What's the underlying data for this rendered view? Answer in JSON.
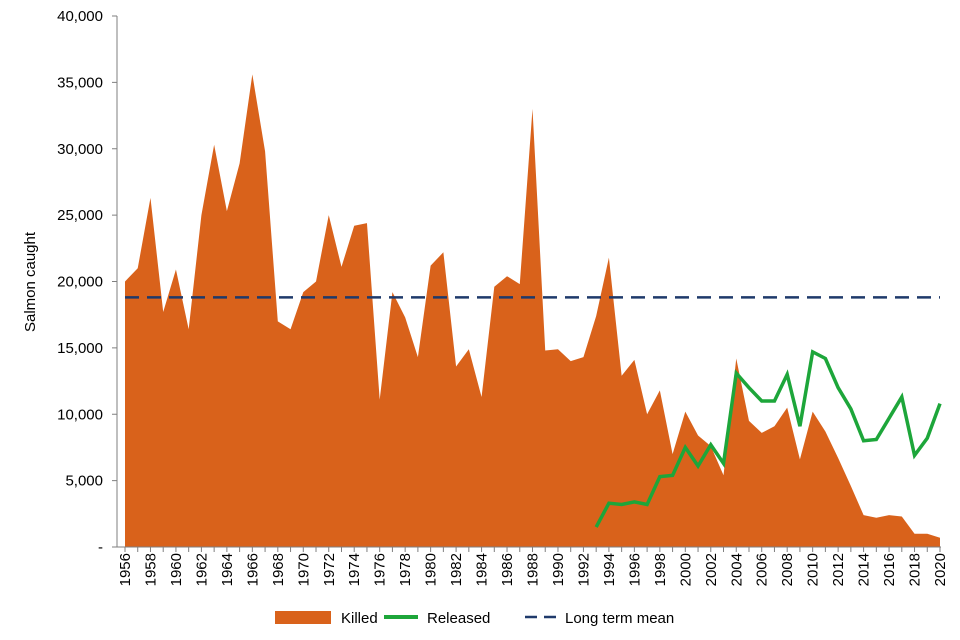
{
  "chart_data": {
    "type": "area",
    "title": "",
    "xlabel": "",
    "ylabel": "Salmon  caught",
    "ylim": [
      0,
      40000
    ],
    "y_ticks": [
      0,
      5000,
      10000,
      15000,
      20000,
      25000,
      30000,
      35000,
      40000
    ],
    "y_tick_labels": [
      "-",
      "5,000",
      "10,000",
      "15,000",
      "20,000",
      "25,000",
      "30,000",
      "35,000",
      "40,000"
    ],
    "x_ticks": [
      1956,
      1958,
      1960,
      1962,
      1964,
      1966,
      1968,
      1970,
      1972,
      1974,
      1976,
      1978,
      1980,
      1982,
      1984,
      1986,
      1988,
      1990,
      1992,
      1994,
      1996,
      1998,
      2000,
      2002,
      2004,
      2006,
      2008,
      2010,
      2012,
      2014,
      2016,
      2018,
      2020
    ],
    "legend_position": "bottom",
    "years": [
      1956,
      1957,
      1958,
      1959,
      1960,
      1961,
      1962,
      1963,
      1964,
      1965,
      1966,
      1967,
      1968,
      1969,
      1970,
      1971,
      1972,
      1973,
      1974,
      1975,
      1976,
      1977,
      1978,
      1979,
      1980,
      1981,
      1982,
      1983,
      1984,
      1985,
      1986,
      1987,
      1988,
      1989,
      1990,
      1991,
      1992,
      1993,
      1994,
      1995,
      1996,
      1997,
      1998,
      1999,
      2000,
      2001,
      2002,
      2003,
      2004,
      2005,
      2006,
      2007,
      2008,
      2009,
      2010,
      2011,
      2012,
      2013,
      2014,
      2015,
      2016,
      2017,
      2018,
      2019,
      2020
    ],
    "series": [
      {
        "name": "Killed",
        "kind": "area",
        "color": "#D9621B",
        "values": [
          20000,
          21000,
          26300,
          17700,
          20900,
          16400,
          25000,
          30300,
          25300,
          28900,
          35600,
          29800,
          17000,
          16400,
          19200,
          20000,
          25000,
          21100,
          24200,
          24400,
          11100,
          19200,
          17300,
          14300,
          21200,
          22200,
          13600,
          14900,
          11300,
          19600,
          20400,
          19800,
          33000,
          14800,
          14900,
          14000,
          14300,
          17400,
          21800,
          12900,
          14100,
          10000,
          11800,
          7000,
          10200,
          8400,
          7600,
          5400,
          14200,
          9500,
          8600,
          9100,
          10500,
          6600,
          10200,
          8700,
          6700,
          4600,
          2400,
          2200,
          2400,
          2300,
          1000,
          1000,
          700
        ]
      },
      {
        "name": "Released",
        "kind": "line",
        "color": "#1DA63A",
        "start_year": 1993,
        "values": [
          1500,
          3300,
          3200,
          3400,
          3200,
          5300,
          5400,
          7500,
          6100,
          7700,
          6300,
          13100,
          12000,
          11000,
          11000,
          13000,
          9100,
          14700,
          14200,
          12000,
          10400,
          8000,
          8100,
          9700,
          11300,
          6900,
          8200,
          10800
        ]
      },
      {
        "name": "Long term mean",
        "kind": "hline",
        "color": "#1F3A6B",
        "value": 18800
      }
    ]
  }
}
